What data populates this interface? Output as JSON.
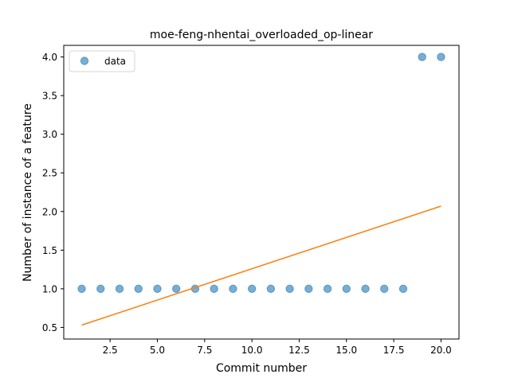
{
  "chart_data": {
    "type": "scatter",
    "title": "moe-feng-nhentai_overloaded_op-linear",
    "xlabel": "Commit number",
    "ylabel": "Number of instance of a feature",
    "xlim": [
      0.05,
      20.95
    ],
    "ylim": [
      0.35,
      4.15
    ],
    "xticks": [
      2.5,
      5.0,
      7.5,
      10.0,
      12.5,
      15.0,
      17.5,
      20.0
    ],
    "xtick_labels": [
      "2.5",
      "5.0",
      "7.5",
      "10.0",
      "12.5",
      "15.0",
      "17.5",
      "20.0"
    ],
    "yticks": [
      0.5,
      1.0,
      1.5,
      2.0,
      2.5,
      3.0,
      3.5,
      4.0
    ],
    "ytick_labels": [
      "0.5",
      "1.0",
      "1.5",
      "2.0",
      "2.5",
      "3.0",
      "3.5",
      "4.0"
    ],
    "grid": false,
    "legend_position": "top-left",
    "series": [
      {
        "name": "data",
        "kind": "scatter",
        "color": "#1f77b4",
        "x": [
          1,
          2,
          3,
          4,
          5,
          6,
          7,
          8,
          9,
          10,
          11,
          12,
          13,
          14,
          15,
          16,
          17,
          18,
          19,
          20
        ],
        "y": [
          1,
          1,
          1,
          1,
          1,
          1,
          1,
          1,
          1,
          1,
          1,
          1,
          1,
          1,
          1,
          1,
          1,
          1,
          4,
          4
        ]
      },
      {
        "kind": "line",
        "color": "#ff7f0e",
        "x": [
          1,
          20
        ],
        "y": [
          0.53,
          2.07
        ]
      }
    ]
  }
}
